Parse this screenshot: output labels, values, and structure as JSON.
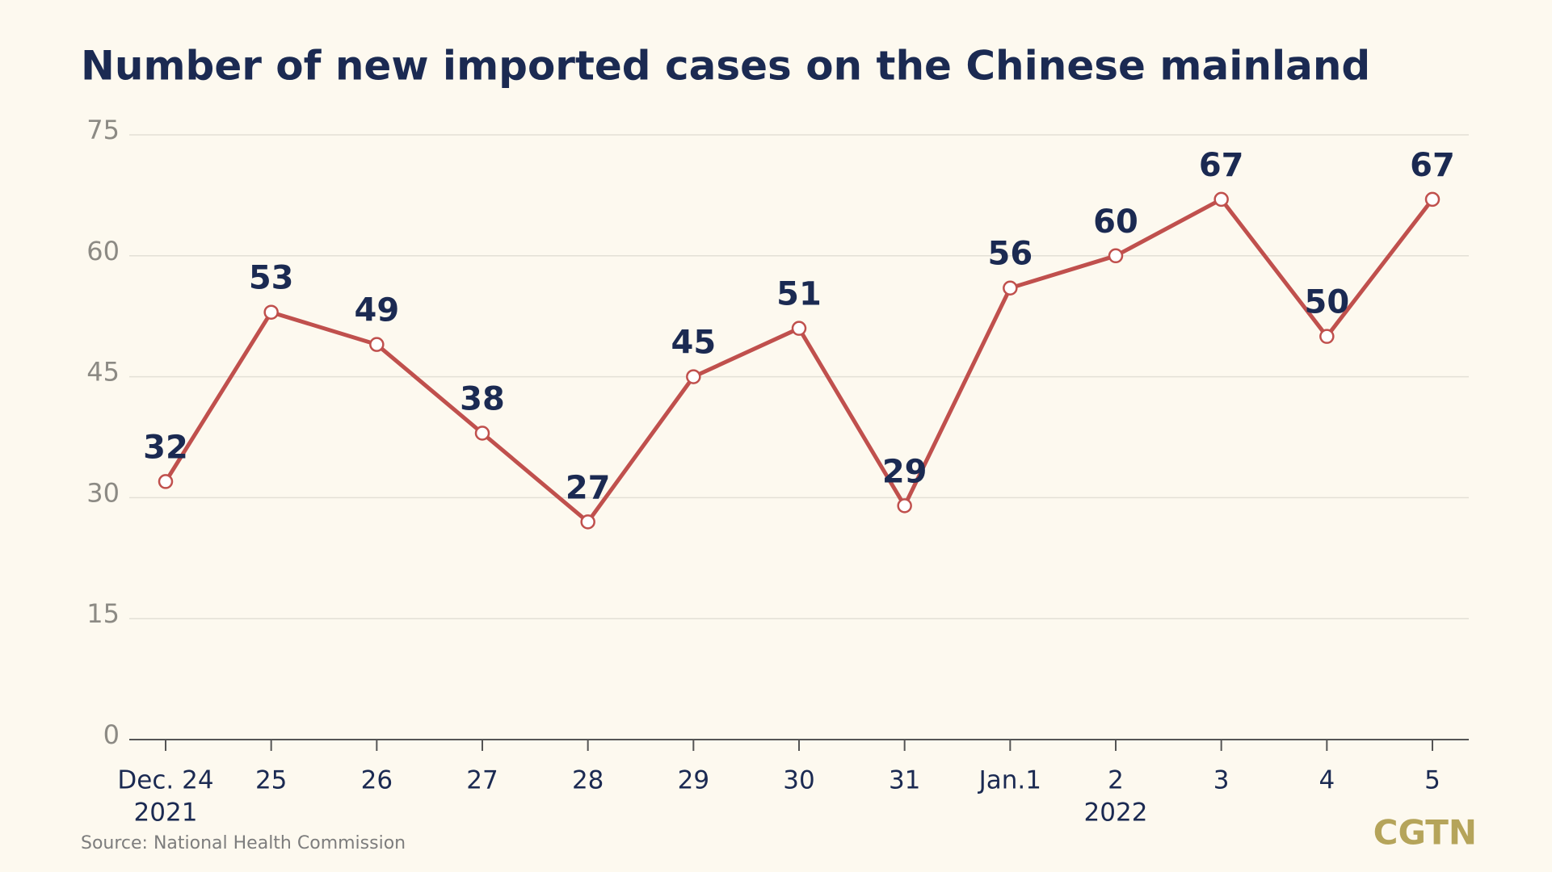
{
  "chart_data": {
    "type": "line",
    "title": "Number of new imported cases on the Chinese mainland",
    "categories": [
      "Dec. 24",
      "25",
      "26",
      "27",
      "28",
      "29",
      "30",
      "31",
      "Jan.1",
      "2",
      "3",
      "4",
      "5"
    ],
    "year_labels": [
      "2021",
      null,
      null,
      null,
      null,
      null,
      null,
      null,
      null,
      "2022",
      null,
      null,
      null
    ],
    "values": [
      32,
      53,
      49,
      38,
      27,
      45,
      51,
      29,
      56,
      60,
      67,
      50,
      67
    ],
    "color": "#c0504d",
    "ylim": [
      0,
      75
    ],
    "yticks": [
      0,
      15,
      30,
      45,
      60,
      75
    ],
    "grid": true,
    "source": "Source: National Health Commission",
    "logo": "CGTN"
  }
}
